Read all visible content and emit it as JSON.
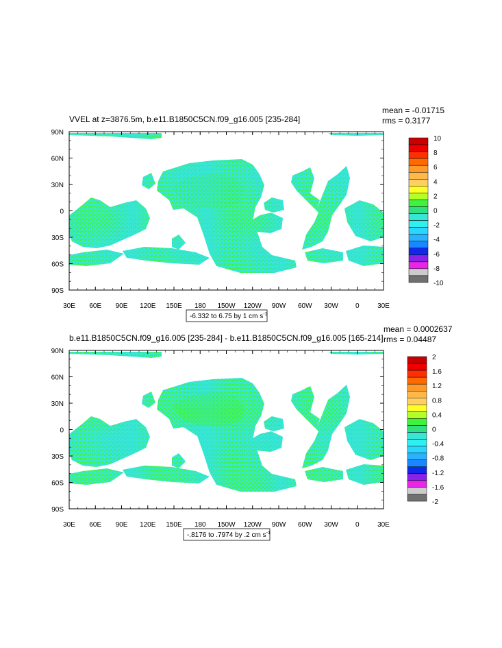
{
  "palette": {
    "land_cyan": "#38e6d6",
    "land_green": "#3ef23e",
    "frame": "#000000",
    "background": "#ffffff"
  },
  "panels": [
    {
      "title": "VVEL at z=3876.5m, b.e11.B1850C5CN.f09_g16.005 [235-284]",
      "mean_text": "mean = -0.01715",
      "rms_text": "rms = 0.3177",
      "range_text": "-6.332 to 6.75 by 1 cm s",
      "range_sup": "-1",
      "colorbar": {
        "labels": [
          "10",
          "8",
          "6",
          "4",
          "2",
          "0",
          "-2",
          "-4",
          "-6",
          "-8",
          "-10"
        ],
        "colors": [
          "#c80000",
          "#ee0000",
          "#ff3000",
          "#ff6a00",
          "#ff9a2a",
          "#ffb84a",
          "#ffd060",
          "#ffff28",
          "#b4ff28",
          "#3ef23e",
          "#30e080",
          "#38e6d6",
          "#2ef0f0",
          "#28d6ff",
          "#2ab2ff",
          "#1a86ff",
          "#1228e8",
          "#8a22e8",
          "#e826e8",
          "#cccccc",
          "#707070"
        ]
      }
    },
    {
      "title": "b.e11.B1850C5CN.f09_g16.005 [235-284] - b.e11.B1850C5CN.f09_g16.005 [165-214]",
      "mean_text": "mean = 0.0002637",
      "rms_text": "rms = 0.04487",
      "range_text": "-.8176 to .7974 by .2 cm s",
      "range_sup": "-1",
      "colorbar": {
        "labels": [
          "2",
          "1.6",
          "1.2",
          "0.8",
          "0.4",
          "0",
          "-0.4",
          "-0.8",
          "-1.2",
          "-1.6",
          "-2"
        ],
        "colors": [
          "#c80000",
          "#ee0000",
          "#ff3000",
          "#ff6a00",
          "#ff9a2a",
          "#ffb84a",
          "#ffd060",
          "#ffff28",
          "#b4ff28",
          "#3ef23e",
          "#30e080",
          "#38e6d6",
          "#2ef0f0",
          "#28d6ff",
          "#2ab2ff",
          "#1a86ff",
          "#1228e8",
          "#8a22e8",
          "#e826e8",
          "#cccccc",
          "#707070"
        ]
      }
    }
  ],
  "x_ticks": [
    "30E",
    "60E",
    "90E",
    "120E",
    "150E",
    "180",
    "150W",
    "120W",
    "90W",
    "60W",
    "30W",
    "0",
    "30E"
  ],
  "y_ticks": [
    "90N",
    "60N",
    "30N",
    "0",
    "30S",
    "60S",
    "90S"
  ],
  "chart_data": [
    {
      "type": "heatmap",
      "map_projection": "cylindrical equidistant, centered 210E",
      "lon_range": [
        30,
        390
      ],
      "lat_range": [
        -90,
        90
      ],
      "grid": false,
      "legend_position": "right",
      "title": "VVEL at z=3876.5m, b.e11.B1850C5CN.f09_g16.005 [235-284]",
      "stats": {
        "mean": -0.01715,
        "rms": 0.3177
      },
      "contour": {
        "min": -6.332,
        "max": 6.75,
        "interval": 1,
        "units": "cm s-1"
      },
      "colorbar_levels": [
        10,
        8,
        6,
        4,
        2,
        0,
        -2,
        -4,
        -6,
        -8,
        -10
      ],
      "dominant_values": "mostly between -1 and 1 (cyan/green)"
    },
    {
      "type": "heatmap",
      "map_projection": "cylindrical equidistant, centered 210E",
      "lon_range": [
        30,
        390
      ],
      "lat_range": [
        -90,
        90
      ],
      "grid": false,
      "legend_position": "right",
      "title": "b.e11.B1850C5CN.f09_g16.005 [235-284] - b.e11.B1850C5CN.f09_g16.005 [165-214]",
      "stats": {
        "mean": 0.0002637,
        "rms": 0.04487
      },
      "contour": {
        "min": -0.8176,
        "max": 0.7974,
        "interval": 0.2,
        "units": "cm s-1"
      },
      "colorbar_levels": [
        2,
        1.6,
        1.2,
        0.8,
        0.4,
        0,
        -0.4,
        -0.8,
        -1.2,
        -1.6,
        -2
      ],
      "dominant_values": "mostly between -0.4 and 0.4 (cyan/green)"
    }
  ]
}
